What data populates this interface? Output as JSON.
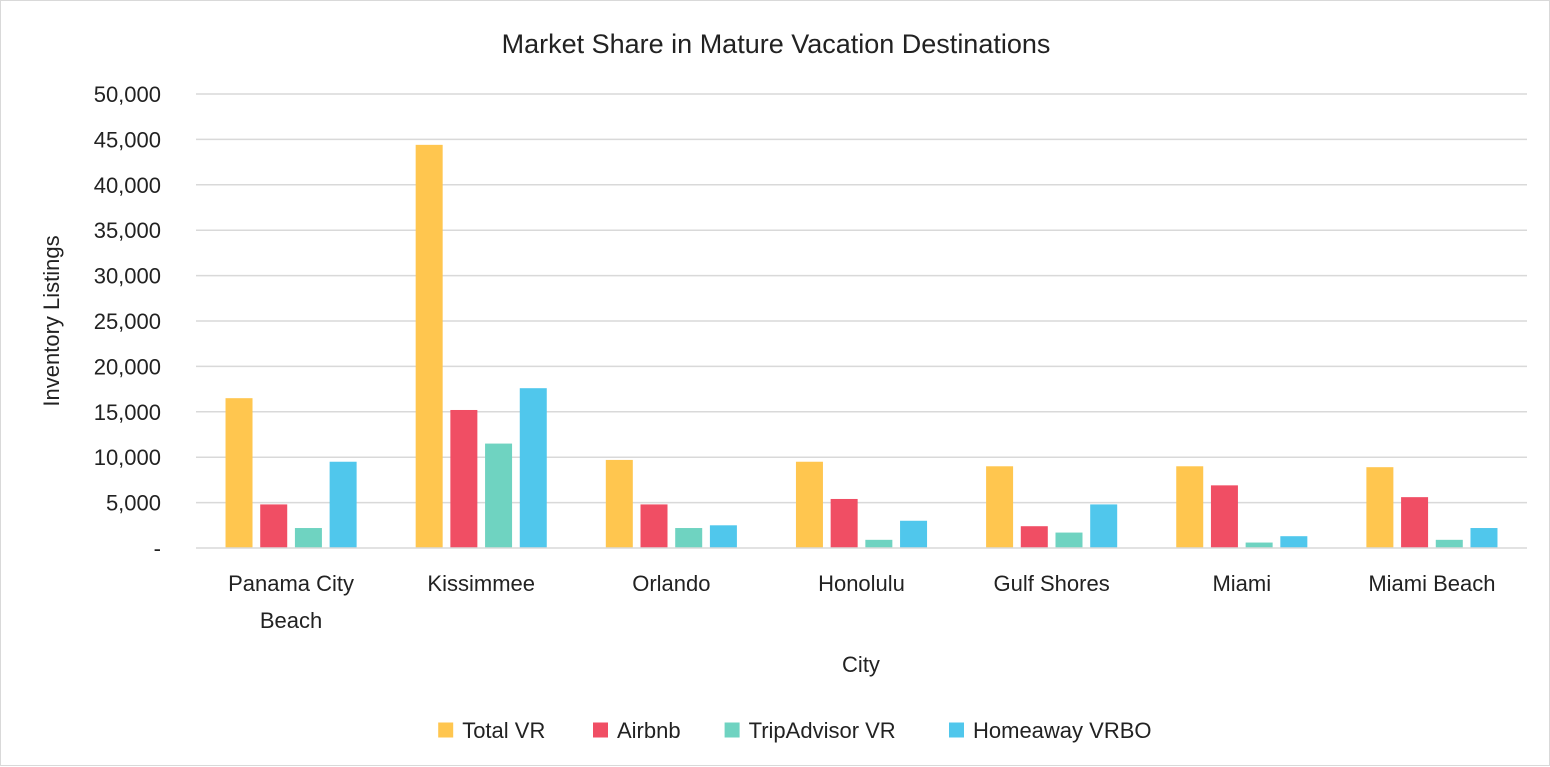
{
  "chart_data": {
    "type": "bar",
    "title": "Market Share in Mature Vacation Destinations",
    "xlabel": "City",
    "ylabel": "Inventory Listings",
    "categories": [
      [
        "Panama City",
        "Beach"
      ],
      [
        "Kissimmee"
      ],
      [
        "Orlando"
      ],
      [
        "Honolulu"
      ],
      [
        "Gulf Shores"
      ],
      [
        "Miami"
      ],
      [
        "Miami Beach"
      ]
    ],
    "series": [
      {
        "name": "Total VR",
        "color": "#FFC64F",
        "values": [
          16500,
          44400,
          9700,
          9500,
          9000,
          9000,
          8900
        ]
      },
      {
        "name": "Airbnb",
        "color": "#F04E64",
        "values": [
          4800,
          15200,
          4800,
          5400,
          2400,
          6900,
          5600
        ]
      },
      {
        "name": "TripAdvisor VR",
        "color": "#6FD3C1",
        "values": [
          2200,
          11500,
          2200,
          900,
          1700,
          600,
          900
        ]
      },
      {
        "name": "Homeaway VRBO",
        "color": "#50C7EC",
        "values": [
          9500,
          17600,
          2500,
          3000,
          4800,
          1300,
          2200
        ]
      }
    ],
    "y_ticks": [
      "-",
      "5,000",
      "10,000",
      "15,000",
      "20,000",
      "25,000",
      "30,000",
      "35,000",
      "40,000",
      "45,000",
      "50,000"
    ],
    "ylim": [
      0,
      50000
    ],
    "grid": true,
    "legend_position": "bottom"
  }
}
